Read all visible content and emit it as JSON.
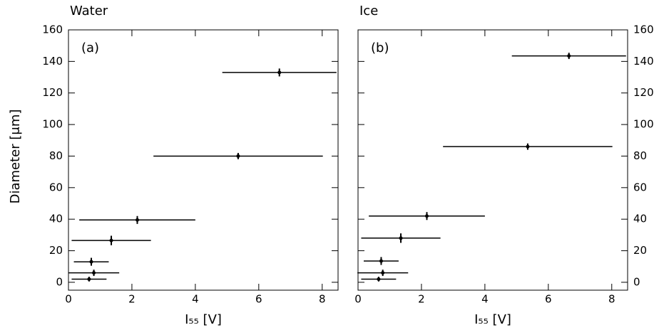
{
  "chart_data": [
    {
      "type": "scatter",
      "title": "Water",
      "annotation": "(a)",
      "xlabel": "I₅₅ [V]",
      "ylabel": "Diameter [μm]",
      "ytick_side": "left",
      "color": "#000000",
      "x": [
        0.65,
        0.8,
        0.72,
        1.35,
        2.17,
        5.35,
        6.65
      ],
      "xerr": [
        0.55,
        0.8,
        0.55,
        1.25,
        1.83,
        2.67,
        1.8
      ],
      "values": [
        2,
        6,
        13,
        26.5,
        39.5,
        80,
        133
      ],
      "yerr": [
        1.5,
        2,
        2.5,
        3,
        2.5,
        2,
        2.5
      ],
      "xlim": [
        0,
        8.5
      ],
      "ylim": [
        -5,
        160
      ],
      "xticks": [
        0,
        2,
        4,
        6,
        8
      ],
      "yticks": [
        0,
        20,
        40,
        60,
        80,
        100,
        120,
        140,
        160
      ]
    },
    {
      "type": "scatter",
      "title": "Ice",
      "annotation": "(b)",
      "xlabel": "I₅₅ [V]",
      "ytick_side": "right",
      "color": "#000000",
      "x": [
        0.65,
        0.78,
        0.73,
        1.35,
        2.17,
        5.35,
        6.65
      ],
      "xerr": [
        0.55,
        0.8,
        0.55,
        1.25,
        1.83,
        2.67,
        1.8
      ],
      "values": [
        2,
        6,
        13.5,
        28,
        42,
        86,
        143.5
      ],
      "yerr": [
        1.5,
        2,
        2.5,
        3,
        2.5,
        2,
        2
      ],
      "xlim": [
        0,
        8.5
      ],
      "ylim": [
        -5,
        160
      ],
      "xticks": [
        0,
        2,
        4,
        6,
        8
      ],
      "yticks": [
        0,
        20,
        40,
        60,
        80,
        100,
        120,
        140,
        160
      ]
    }
  ]
}
